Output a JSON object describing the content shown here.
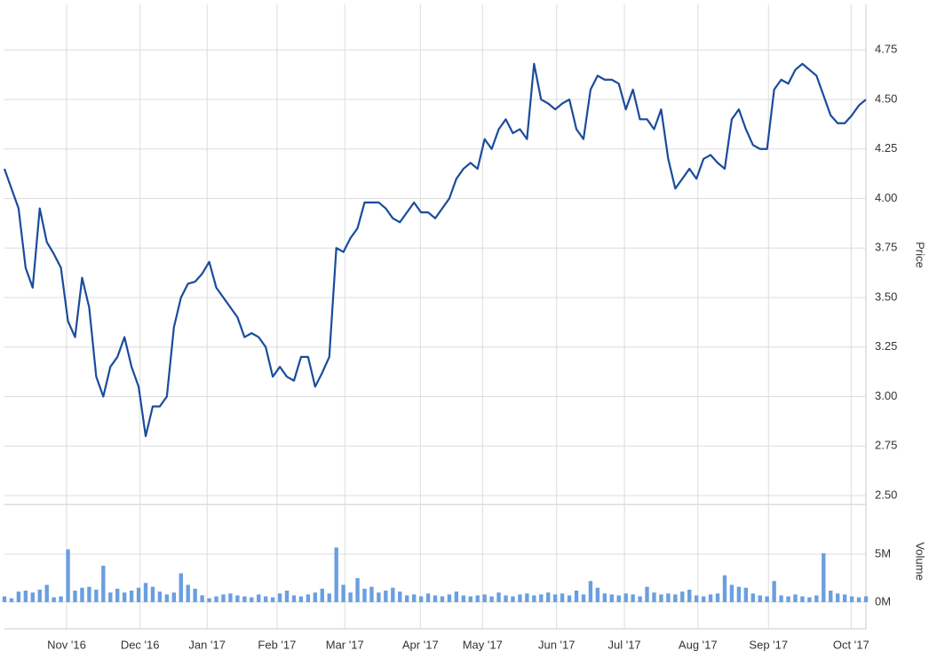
{
  "chart_data": [
    {
      "type": "line",
      "y_label": "Price",
      "color": "#1a4c9c",
      "grid": true,
      "values": [
        4.15,
        4.05,
        3.95,
        3.65,
        3.55,
        3.95,
        3.78,
        3.72,
        3.65,
        3.38,
        3.3,
        3.6,
        3.45,
        3.1,
        3.0,
        3.15,
        3.2,
        3.3,
        3.15,
        3.05,
        2.8,
        2.95,
        2.95,
        3.0,
        3.35,
        3.5,
        3.57,
        3.58,
        3.62,
        3.68,
        3.55,
        3.5,
        3.45,
        3.4,
        3.3,
        3.32,
        3.3,
        3.25,
        3.1,
        3.15,
        3.1,
        3.08,
        3.2,
        3.2,
        3.05,
        3.12,
        3.2,
        3.75,
        3.73,
        3.8,
        3.85,
        3.98,
        3.98,
        3.98,
        3.95,
        3.9,
        3.88,
        3.93,
        3.98,
        3.93,
        3.93,
        3.9,
        3.95,
        4.0,
        4.1,
        4.15,
        4.18,
        4.15,
        4.3,
        4.25,
        4.35,
        4.4,
        4.33,
        4.35,
        4.3,
        4.68,
        4.5,
        4.48,
        4.45,
        4.48,
        4.5,
        4.35,
        4.3,
        4.55,
        4.62,
        4.6,
        4.6,
        4.58,
        4.45,
        4.55,
        4.4,
        4.4,
        4.35,
        4.45,
        4.2,
        4.05,
        4.1,
        4.15,
        4.1,
        4.2,
        4.22,
        4.18,
        4.15,
        4.4,
        4.45,
        4.35,
        4.27,
        4.25,
        4.25,
        4.55,
        4.6,
        4.58,
        4.65,
        4.68,
        4.65,
        4.62,
        4.52,
        4.42,
        4.38,
        4.38,
        4.42,
        4.47,
        4.5
      ],
      "xlim": [
        0,
        122
      ],
      "xticks": [
        {
          "value": 8.8,
          "label": "Nov '16"
        },
        {
          "value": 19.2,
          "label": "Dec '16"
        },
        {
          "value": 28.7,
          "label": "Jan '17"
        },
        {
          "value": 38.6,
          "label": "Feb '17"
        },
        {
          "value": 48.2,
          "label": "Mar '17"
        },
        {
          "value": 58.9,
          "label": "Apr '17"
        },
        {
          "value": 67.7,
          "label": "May '17"
        },
        {
          "value": 78.2,
          "label": "Jun '17"
        },
        {
          "value": 87.8,
          "label": "Jul '17"
        },
        {
          "value": 98.2,
          "label": "Aug '17"
        },
        {
          "value": 108.2,
          "label": "Sep '17"
        },
        {
          "value": 119.9,
          "label": "Oct '17"
        }
      ],
      "ylim": [
        2.455,
        4.98
      ],
      "yticks": [
        {
          "value": 2.5,
          "label": "2.50"
        },
        {
          "value": 2.75,
          "label": "2.75"
        },
        {
          "value": 3,
          "label": "3.00"
        },
        {
          "value": 3.25,
          "label": "3.25"
        },
        {
          "value": 3.5,
          "label": "3.50"
        },
        {
          "value": 3.75,
          "label": "3.75"
        },
        {
          "value": 4,
          "label": "4.00"
        },
        {
          "value": 4.25,
          "label": "4.25"
        },
        {
          "value": 4.5,
          "label": "4.50"
        },
        {
          "value": 4.75,
          "label": "4.75"
        }
      ]
    },
    {
      "type": "bar",
      "y_label": "Volume",
      "color": "#6a9fdf",
      "grid": true,
      "values": [
        0.6,
        0.4,
        1.1,
        1.2,
        1.0,
        1.3,
        1.8,
        0.5,
        0.6,
        5.5,
        1.2,
        1.5,
        1.6,
        1.3,
        3.8,
        1.0,
        1.4,
        1.0,
        1.2,
        1.5,
        2.0,
        1.6,
        1.1,
        0.8,
        1.0,
        3.0,
        1.8,
        1.4,
        0.7,
        0.4,
        0.6,
        0.8,
        0.9,
        0.7,
        0.6,
        0.5,
        0.8,
        0.6,
        0.5,
        0.9,
        1.2,
        0.7,
        0.6,
        0.8,
        1.0,
        1.4,
        0.9,
        5.7,
        1.8,
        1.0,
        2.5,
        1.4,
        1.6,
        1.0,
        1.2,
        1.5,
        1.1,
        0.7,
        0.8,
        0.6,
        0.9,
        0.7,
        0.6,
        0.8,
        1.1,
        0.7,
        0.6,
        0.7,
        0.8,
        0.6,
        1.0,
        0.7,
        0.6,
        0.8,
        0.9,
        0.7,
        0.8,
        1.0,
        0.8,
        0.9,
        0.7,
        1.2,
        0.8,
        2.2,
        1.5,
        0.9,
        0.8,
        0.7,
        0.9,
        0.8,
        0.6,
        1.6,
        1.0,
        0.8,
        0.9,
        0.8,
        1.1,
        1.3,
        0.7,
        0.6,
        0.8,
        0.9,
        2.8,
        1.8,
        1.6,
        1.5,
        0.9,
        0.7,
        0.6,
        2.2,
        0.7,
        0.6,
        0.8,
        0.6,
        0.5,
        0.7,
        5.1,
        1.2,
        0.9,
        0.8,
        0.6,
        0.5,
        0.6
      ],
      "xlim": [
        0,
        122
      ],
      "ylim": [
        -0.93,
        9.07
      ],
      "yticks": [
        {
          "value": 0,
          "label": "0M"
        },
        {
          "value": 5,
          "label": "5M"
        }
      ]
    }
  ]
}
